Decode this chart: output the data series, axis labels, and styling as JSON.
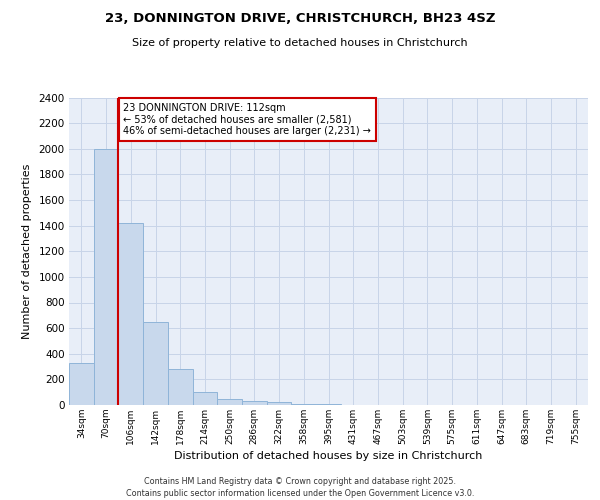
{
  "title1": "23, DONNINGTON DRIVE, CHRISTCHURCH, BH23 4SZ",
  "title2": "Size of property relative to detached houses in Christchurch",
  "xlabel": "Distribution of detached houses by size in Christchurch",
  "ylabel": "Number of detached properties",
  "bins": [
    "34sqm",
    "70sqm",
    "106sqm",
    "142sqm",
    "178sqm",
    "214sqm",
    "250sqm",
    "286sqm",
    "322sqm",
    "358sqm",
    "395sqm",
    "431sqm",
    "467sqm",
    "503sqm",
    "539sqm",
    "575sqm",
    "611sqm",
    "647sqm",
    "683sqm",
    "719sqm",
    "755sqm"
  ],
  "values": [
    325,
    2000,
    1420,
    650,
    280,
    100,
    45,
    35,
    20,
    10,
    5,
    2,
    1,
    0,
    0,
    0,
    0,
    0,
    0,
    0,
    0
  ],
  "bar_color": "#c8d8ec",
  "bar_edge_color": "#8fb4d8",
  "grid_color": "#c8d4e8",
  "background_color": "#e8eef8",
  "vline_color": "#cc0000",
  "annotation_title": "23 DONNINGTON DRIVE: 112sqm",
  "annotation_line1": "← 53% of detached houses are smaller (2,581)",
  "annotation_line2": "46% of semi-detached houses are larger (2,231) →",
  "annotation_box_color": "#cc0000",
  "ylim": [
    0,
    2400
  ],
  "yticks": [
    0,
    200,
    400,
    600,
    800,
    1000,
    1200,
    1400,
    1600,
    1800,
    2000,
    2200,
    2400
  ],
  "footer1": "Contains HM Land Registry data © Crown copyright and database right 2025.",
  "footer2": "Contains public sector information licensed under the Open Government Licence v3.0."
}
